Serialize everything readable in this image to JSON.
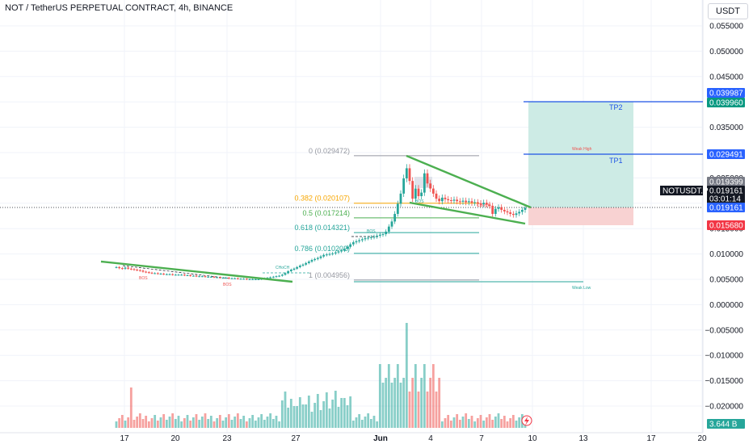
{
  "header": {
    "title": "NOT / TetherUS PERPETUAL CONTRACT, 4h, BINANCE",
    "currency_button": "USDT"
  },
  "colors": {
    "up": "#26a69a",
    "down": "#ef5350",
    "trendline": "#4caf50",
    "target_line": "#1e53e5",
    "profit_zone": "#cdebe5",
    "stop_zone": "#f8d2d2",
    "symbol_tag": "#131722",
    "last_price_tag": "#2962ff",
    "stop_tag": "#f23645",
    "tp_tag_top": "#2962ff",
    "tp_tag_bottom": "#089981",
    "fib_gray": "#9598a1",
    "fib_orange": "#f7a600",
    "fib_green": "#4caf50",
    "fib_teal": "#26a69a"
  },
  "price_axis": {
    "ticks": [
      "0.055000",
      "0.050000",
      "0.045000",
      "0.040000",
      "0.035000",
      "0.030000",
      "0.025000",
      "0.020000",
      "0.015000",
      "0.010000",
      "0.005000",
      "0.000000",
      "−0.005000",
      "−0.010000",
      "−0.015000",
      "−0.020000"
    ]
  },
  "time_axis": {
    "ticks": [
      "17",
      "20",
      "23",
      "27",
      "Jun",
      "4",
      "7",
      "10",
      "13",
      "17",
      "20"
    ]
  },
  "price_tags": {
    "tp2_top": "0.039987",
    "tp2_bottom": "0.039960",
    "tp1": "0.029491",
    "gray": "0.019399",
    "symbol": "NOTUSDT.P",
    "price": "0.019161",
    "countdown": "03:01:14",
    "last": "0.019161",
    "stop": "0.015680",
    "volume": "3.644 B"
  },
  "fib_levels": [
    {
      "ratio": "0",
      "price": "0.029472",
      "label": "0 (0.029472)",
      "color": "#9598a1"
    },
    {
      "ratio": "0.382",
      "price": "0.020107",
      "label": "0.382 (0.020107)",
      "color": "#f7a600"
    },
    {
      "ratio": "0.5",
      "price": "0.017214",
      "label": "0.5 (0.017214)",
      "color": "#4caf50"
    },
    {
      "ratio": "0.618",
      "price": "0.014321",
      "label": "0.618 (0.014321)",
      "color": "#26a69a"
    },
    {
      "ratio": "0.786",
      "price": "0.010202",
      "label": "0.786 (0.010202)",
      "color": "#26a69a"
    },
    {
      "ratio": "1",
      "price": "0.004956",
      "label": "1 (0.004956)",
      "color": "#9598a1"
    }
  ],
  "annotations": {
    "tp2": "TP2",
    "tp1": "TP1",
    "weak_high": "Weak High",
    "weak_low": "Weak Low",
    "bos_1": "BOS",
    "bos_2": "BOS",
    "bos_3": "BOS",
    "bos_4": "BOS",
    "choch_1": "CHoCH",
    "choch_2": "CHoCH"
  },
  "chart_data": {
    "type": "candlestick",
    "title": "NOT / TetherUS PERPETUAL CONTRACT, 4h, BINANCE",
    "price_range": [
      -0.023,
      0.057
    ],
    "close_prices": [
      0.0075,
      0.0073,
      0.0072,
      0.0074,
      0.0072,
      0.0071,
      0.007,
      0.0069,
      0.0068,
      0.0066,
      0.0065,
      0.0064,
      0.0063,
      0.0063,
      0.0062,
      0.0062,
      0.0061,
      0.0061,
      0.0061,
      0.006,
      0.006,
      0.006,
      0.006,
      0.0059,
      0.0059,
      0.0058,
      0.0058,
      0.0057,
      0.0057,
      0.0057,
      0.0056,
      0.0056,
      0.0056,
      0.0055,
      0.0055,
      0.0054,
      0.0054,
      0.0054,
      0.0053,
      0.0053,
      0.0053,
      0.0052,
      0.0052,
      0.0052,
      0.0051,
      0.0051,
      0.0051,
      0.0051,
      0.0051,
      0.0052,
      0.0053,
      0.0054,
      0.0055,
      0.0056,
      0.0057,
      0.0058,
      0.006,
      0.0063,
      0.0067,
      0.007,
      0.0072,
      0.0075,
      0.0078,
      0.008,
      0.0083,
      0.0086,
      0.0089,
      0.0091,
      0.0093,
      0.0096,
      0.0099,
      0.01,
      0.0101,
      0.0102,
      0.0104,
      0.0106,
      0.0108,
      0.0111,
      0.0115,
      0.012,
      0.0124,
      0.0126,
      0.0128,
      0.013,
      0.0132,
      0.0133,
      0.0134,
      0.0135,
      0.0137,
      0.0139,
      0.014,
      0.0145,
      0.0155,
      0.0165,
      0.018,
      0.02,
      0.022,
      0.025,
      0.027,
      0.0245,
      0.021,
      0.023,
      0.0215,
      0.0222,
      0.026,
      0.024,
      0.023,
      0.022,
      0.021,
      0.0205,
      0.0212,
      0.0209,
      0.0207,
      0.0206,
      0.0208,
      0.0205,
      0.0204,
      0.0206,
      0.0203,
      0.0205,
      0.0202,
      0.0203,
      0.0201,
      0.0199,
      0.0202,
      0.0198,
      0.0196,
      0.018,
      0.019,
      0.0193,
      0.0188,
      0.0185,
      0.0183,
      0.018,
      0.0178,
      0.0181,
      0.0184,
      0.0188,
      0.0192
    ],
    "volume_note": "volume histogram shown in sub-pane",
    "last_price": 0.019161,
    "take_profit_1": 0.029491,
    "take_profit_2": 0.03996,
    "stop_loss": 0.01568
  }
}
